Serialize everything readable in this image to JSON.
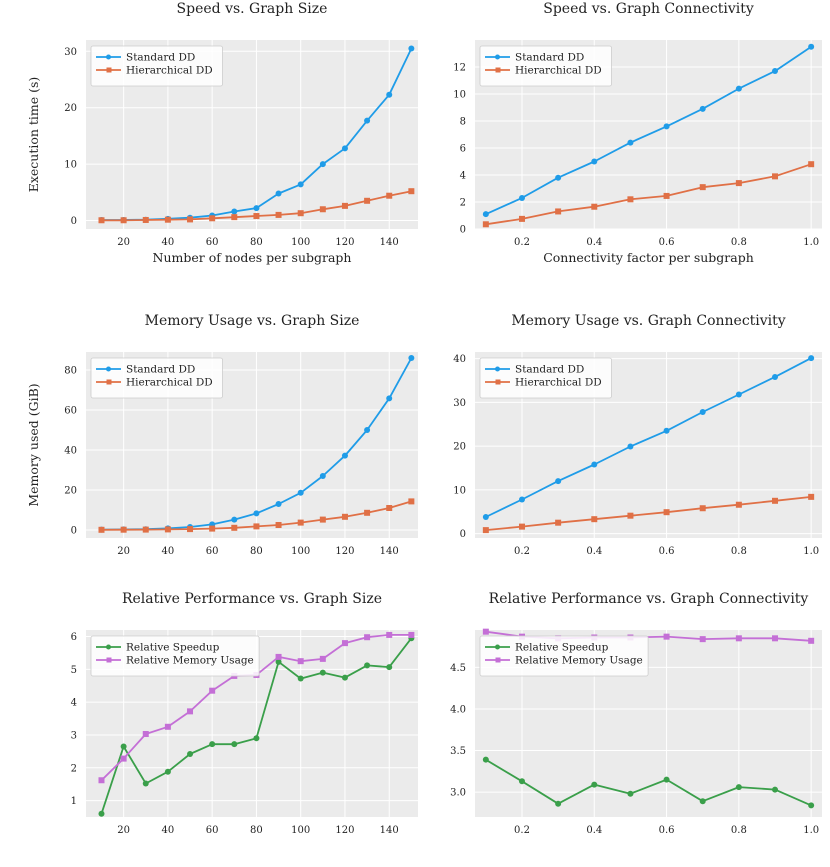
{
  "colors": {
    "standard": "#1f9ce8",
    "hierarchical": "#e07046",
    "speedup": "#3a9f4a",
    "memory": "#c46fd6",
    "plot_bg": "#ebebeb",
    "grid": "#ffffff"
  },
  "chart_data": [
    {
      "id": "speed-size",
      "type": "line",
      "title": "Speed vs. Graph Size",
      "xlabel": "Number of nodes per subgraph",
      "ylabel": "Execution time (s)",
      "xlim": [
        3,
        153
      ],
      "ylim": [
        -1.5,
        32
      ],
      "xticks": [
        20,
        40,
        60,
        80,
        100,
        120,
        140
      ],
      "xtick_labels": [
        "20",
        "40",
        "60",
        "80",
        "100",
        "120",
        "140"
      ],
      "yticks": [
        0,
        10,
        20,
        30
      ],
      "ytick_labels": [
        "0",
        "10",
        "20",
        "30"
      ],
      "legend": "top-left",
      "x": [
        10,
        20,
        30,
        40,
        50,
        60,
        70,
        80,
        90,
        100,
        110,
        120,
        130,
        140,
        150
      ],
      "series": [
        {
          "name": "Standard DD",
          "color_key": "standard",
          "marker": "circle",
          "values": [
            0.1,
            0.1,
            0.15,
            0.3,
            0.5,
            0.9,
            1.6,
            2.2,
            4.8,
            6.4,
            10.0,
            12.8,
            17.7,
            22.3,
            30.5
          ]
        },
        {
          "name": "Hierarchical DD",
          "color_key": "hierarchical",
          "marker": "square",
          "values": [
            0.05,
            0.05,
            0.1,
            0.15,
            0.2,
            0.4,
            0.6,
            0.8,
            1.0,
            1.3,
            2.0,
            2.6,
            3.5,
            4.4,
            5.2
          ]
        }
      ]
    },
    {
      "id": "speed-connectivity",
      "type": "line",
      "title": "Speed vs. Graph Connectivity",
      "xlabel": "Connectivity factor per subgraph",
      "ylabel": "",
      "xlim": [
        0.07,
        1.03
      ],
      "ylim": [
        0,
        14
      ],
      "xticks": [
        0.2,
        0.4,
        0.6,
        0.8,
        1.0
      ],
      "xtick_labels": [
        "0.2",
        "0.4",
        "0.6",
        "0.8",
        "1.0"
      ],
      "yticks": [
        0,
        2,
        4,
        6,
        8,
        10,
        12
      ],
      "ytick_labels": [
        "0",
        "2",
        "4",
        "6",
        "8",
        "10",
        "12"
      ],
      "legend": "top-left",
      "x": [
        0.1,
        0.2,
        0.3,
        0.4,
        0.5,
        0.6,
        0.7,
        0.8,
        0.9,
        1.0
      ],
      "series": [
        {
          "name": "Standard DD",
          "color_key": "standard",
          "marker": "circle",
          "values": [
            1.1,
            2.3,
            3.8,
            5.0,
            6.4,
            7.6,
            8.9,
            10.4,
            11.7,
            13.5
          ]
        },
        {
          "name": "Hierarchical DD",
          "color_key": "hierarchical",
          "marker": "square",
          "values": [
            0.35,
            0.75,
            1.3,
            1.65,
            2.2,
            2.45,
            3.1,
            3.4,
            3.9,
            4.8
          ]
        }
      ]
    },
    {
      "id": "memory-size",
      "type": "line",
      "title": "Memory Usage vs. Graph Size",
      "xlabel": "",
      "ylabel": "Memory used (GiB)",
      "xlim": [
        3,
        153
      ],
      "ylim": [
        -4,
        89
      ],
      "xticks": [
        20,
        40,
        60,
        80,
        100,
        120,
        140
      ],
      "xtick_labels": [
        "20",
        "40",
        "60",
        "80",
        "100",
        "120",
        "140"
      ],
      "yticks": [
        0,
        20,
        40,
        60,
        80
      ],
      "ytick_labels": [
        "0",
        "20",
        "40",
        "60",
        "80"
      ],
      "legend": "top-left",
      "x": [
        10,
        20,
        30,
        40,
        50,
        60,
        70,
        80,
        90,
        100,
        110,
        120,
        130,
        140,
        150
      ],
      "series": [
        {
          "name": "Standard DD",
          "color_key": "standard",
          "marker": "circle",
          "values": [
            0.2,
            0.3,
            0.4,
            0.8,
            1.5,
            2.8,
            5.2,
            8.3,
            13.0,
            18.6,
            27.0,
            37.2,
            50.0,
            65.8,
            86.0
          ]
        },
        {
          "name": "Hierarchical DD",
          "color_key": "hierarchical",
          "marker": "square",
          "values": [
            0.1,
            0.15,
            0.2,
            0.3,
            0.45,
            0.7,
            1.1,
            1.8,
            2.5,
            3.7,
            5.2,
            6.6,
            8.6,
            11.0,
            14.3
          ]
        }
      ]
    },
    {
      "id": "memory-connectivity",
      "type": "line",
      "title": "Memory Usage vs. Graph Connectivity",
      "xlabel": "",
      "ylabel": "",
      "xlim": [
        0.07,
        1.03
      ],
      "ylim": [
        -1,
        41.5
      ],
      "xticks": [
        0.2,
        0.4,
        0.6,
        0.8,
        1.0
      ],
      "xtick_labels": [
        "0.2",
        "0.4",
        "0.6",
        "0.8",
        "1.0"
      ],
      "yticks": [
        0,
        10,
        20,
        30,
        40
      ],
      "ytick_labels": [
        "0",
        "10",
        "20",
        "30",
        "40"
      ],
      "legend": "top-left",
      "x": [
        0.1,
        0.2,
        0.3,
        0.4,
        0.5,
        0.6,
        0.7,
        0.8,
        0.9,
        1.0
      ],
      "series": [
        {
          "name": "Standard DD",
          "color_key": "standard",
          "marker": "circle",
          "values": [
            3.8,
            7.8,
            12.0,
            15.8,
            19.9,
            23.5,
            27.8,
            31.8,
            35.8,
            40.1
          ]
        },
        {
          "name": "Hierarchical DD",
          "color_key": "hierarchical",
          "marker": "square",
          "values": [
            0.8,
            1.6,
            2.5,
            3.3,
            4.1,
            4.9,
            5.8,
            6.6,
            7.5,
            8.4
          ]
        }
      ]
    },
    {
      "id": "relative-size",
      "type": "line",
      "title": "Relative Performance vs. Graph Size",
      "xlabel": "",
      "ylabel": "",
      "xlim": [
        3,
        153
      ],
      "ylim": [
        0.5,
        6.2
      ],
      "xticks": [
        20,
        40,
        60,
        80,
        100,
        120,
        140
      ],
      "xtick_labels": [
        "20",
        "40",
        "60",
        "80",
        "100",
        "120",
        "140"
      ],
      "yticks": [
        1,
        2,
        3,
        4,
        5,
        6
      ],
      "ytick_labels": [
        "1",
        "2",
        "3",
        "4",
        "5",
        "6"
      ],
      "legend": "top-left",
      "x": [
        10,
        20,
        30,
        40,
        50,
        60,
        70,
        80,
        90,
        100,
        110,
        120,
        130,
        140,
        150
      ],
      "series": [
        {
          "name": "Relative Speedup",
          "color_key": "speedup",
          "marker": "circle",
          "values": [
            0.6,
            2.65,
            1.52,
            1.88,
            2.42,
            2.72,
            2.72,
            2.9,
            5.23,
            4.72,
            4.9,
            4.75,
            5.12,
            5.07,
            5.95
          ]
        },
        {
          "name": "Relative Memory Usage",
          "color_key": "memory",
          "marker": "square",
          "values": [
            1.62,
            2.28,
            3.03,
            3.25,
            3.72,
            4.35,
            4.8,
            4.83,
            5.38,
            5.25,
            5.32,
            5.8,
            5.98,
            6.05,
            6.05
          ]
        }
      ]
    },
    {
      "id": "relative-connectivity",
      "type": "line",
      "title": "Relative Performance vs. Graph Connectivity",
      "xlabel": "",
      "ylabel": "",
      "xlim": [
        0.07,
        1.03
      ],
      "ylim": [
        2.7,
        4.95
      ],
      "xticks": [
        0.2,
        0.4,
        0.6,
        0.8,
        1.0
      ],
      "xtick_labels": [
        "0.2",
        "0.4",
        "0.6",
        "0.8",
        "1.0"
      ],
      "yticks": [
        3.0,
        3.5,
        4.0,
        4.5
      ],
      "ytick_labels": [
        "3.0",
        "3.5",
        "4.0",
        "4.5"
      ],
      "legend": "top-left",
      "x": [
        0.1,
        0.2,
        0.3,
        0.4,
        0.5,
        0.6,
        0.7,
        0.8,
        0.9,
        1.0
      ],
      "series": [
        {
          "name": "Relative Speedup",
          "color_key": "speedup",
          "marker": "circle",
          "values": [
            3.39,
            3.13,
            2.86,
            3.09,
            2.98,
            3.15,
            2.89,
            3.06,
            3.03,
            2.84
          ]
        },
        {
          "name": "Relative Memory Usage",
          "color_key": "memory",
          "marker": "square",
          "values": [
            4.93,
            4.87,
            4.85,
            4.86,
            4.86,
            4.87,
            4.84,
            4.85,
            4.85,
            4.82
          ]
        }
      ]
    }
  ]
}
